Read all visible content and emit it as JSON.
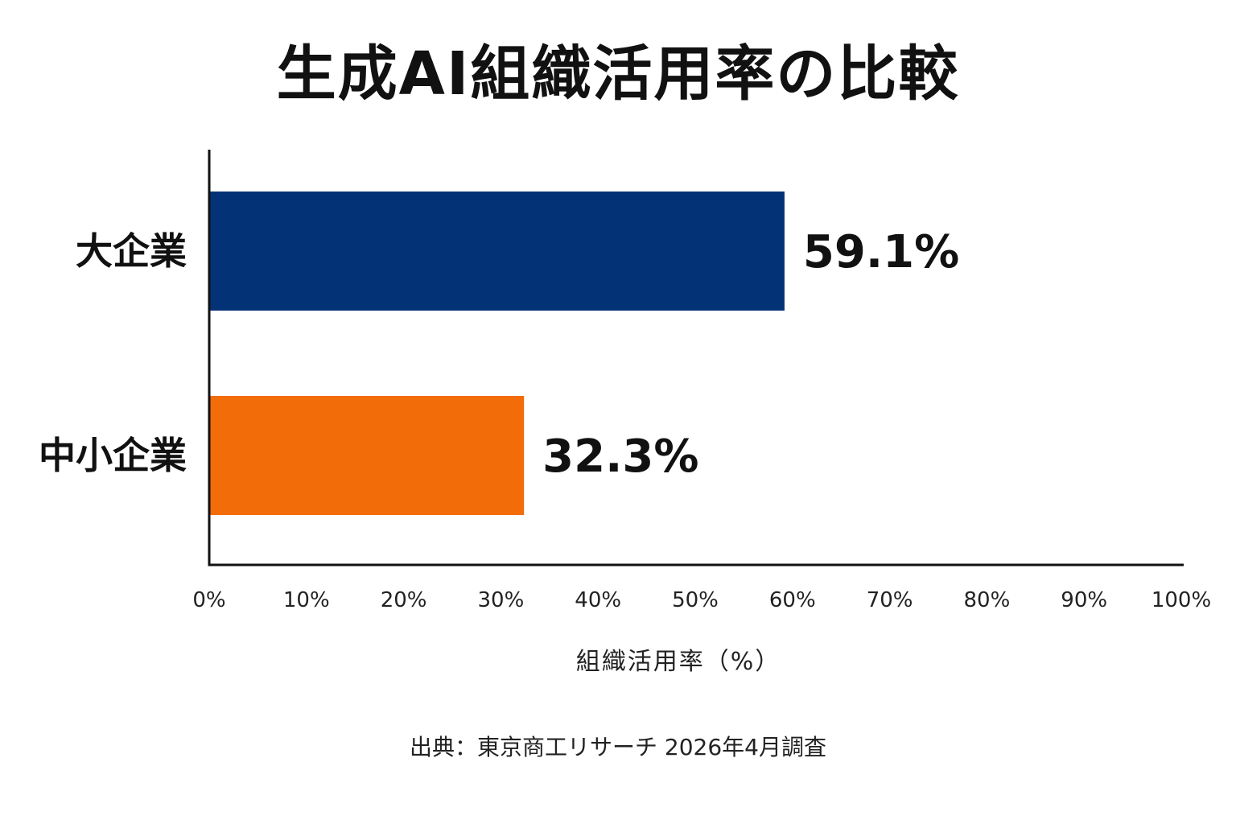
{
  "chart_data": {
    "type": "bar",
    "orientation": "horizontal",
    "title": "生成AI組織活用率の比較",
    "categories": [
      "大企業",
      "中小企業"
    ],
    "values": [
      59.1,
      32.3
    ],
    "value_labels": [
      "59.1%",
      "32.3%"
    ],
    "colors": [
      "#043277",
      "#f36c0a"
    ],
    "xlabel": "組織活用率（%）",
    "ylabel": "",
    "xlim": [
      0,
      100
    ],
    "xticks": [
      "0%",
      "10%",
      "20%",
      "30%",
      "40%",
      "50%",
      "60%",
      "70%",
      "80%",
      "90%",
      "100%"
    ],
    "grid": false,
    "legend": "none"
  },
  "source": "出典：東京商工リサーチ 2026年4月調査"
}
